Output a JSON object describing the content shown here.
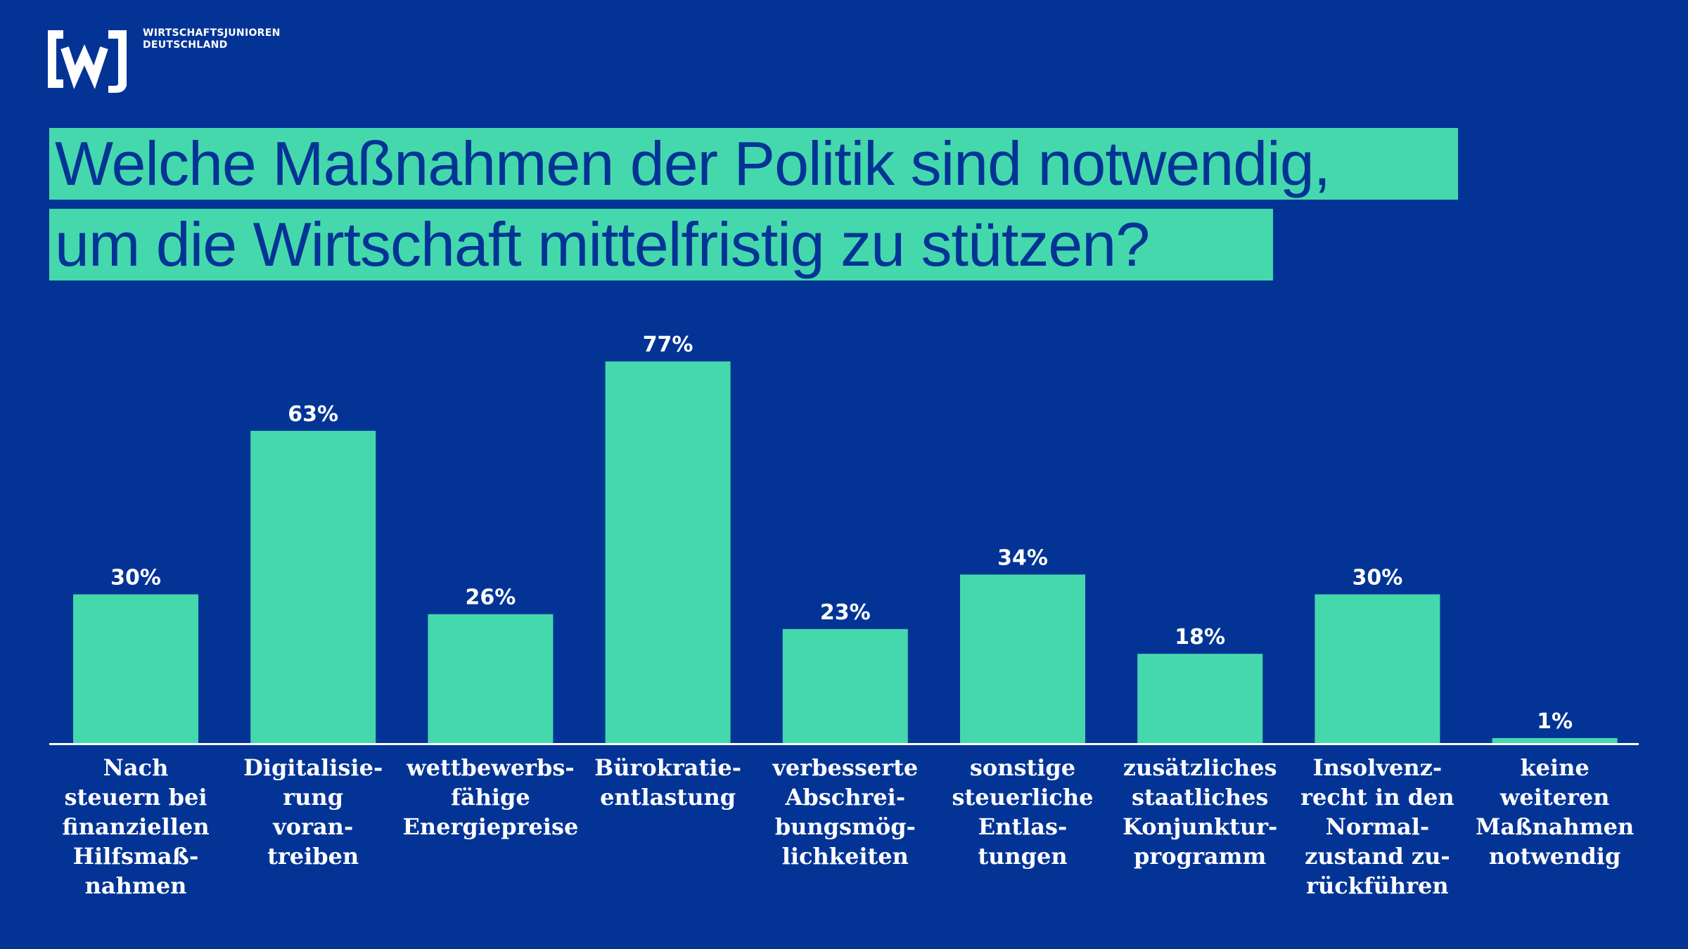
{
  "brand": {
    "logo_mark": "[wj]",
    "name_line1": "WIRTSCHAFTSJUNIOREN",
    "name_line2": "DEUTSCHLAND",
    "colors": {
      "background": "#033495",
      "accent": "#45d8ad",
      "text": "#ffffff"
    }
  },
  "title": {
    "line1": "Welche Maßnahmen der Politik sind notwendig,",
    "line2": "um die Wirtschaft mittelfristig zu stützen?"
  },
  "chart_data": {
    "type": "bar",
    "title": "Welche Maßnahmen der Politik sind notwendig, um die Wirtschaft mittelfristig zu stützen?",
    "unit": "%",
    "ylim": [
      0,
      100
    ],
    "grid": false,
    "categories": [
      [
        "Nach",
        "steuern bei",
        "finanziellen",
        "Hilfsmaß-",
        "nahmen"
      ],
      [
        "Digitalisie-",
        "rung",
        "voran-",
        "treiben"
      ],
      [
        "wettbewerbs-",
        "fähige",
        "Energiepreise"
      ],
      [
        "Bürokratie-",
        "entlastung"
      ],
      [
        "verbesserte",
        "Abschrei-",
        "bungsmög-",
        "lichkeiten"
      ],
      [
        "sonstige",
        "steuerliche",
        "Entlas-",
        "tungen"
      ],
      [
        "zusätzliches",
        "staatliches",
        "Konjunktur-",
        "programm"
      ],
      [
        "Insolvenz-",
        "recht in den",
        "Normal-",
        "zustand zu-",
        "rückführen"
      ],
      [
        "keine",
        "weiteren",
        "Maßnahmen",
        "notwendig"
      ]
    ],
    "values": [
      30,
      63,
      26,
      77,
      23,
      34,
      18,
      30,
      1
    ],
    "data_labels": [
      "30%",
      "63%",
      "26%",
      "77%",
      "23%",
      "34%",
      "18%",
      "30%",
      "1%"
    ],
    "bar_color": "#45d8ad"
  }
}
